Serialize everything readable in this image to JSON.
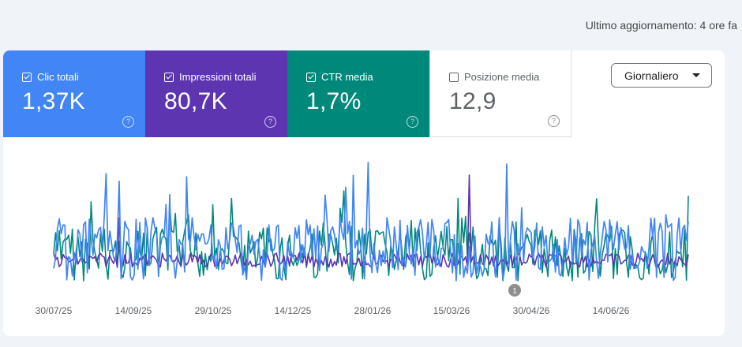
{
  "header": {
    "last_updated": "Ultimo aggiornamento: 4 ore fa"
  },
  "metrics": [
    {
      "label": "Clic totali",
      "value": "1,37K",
      "checked": true,
      "color": "#4285f4"
    },
    {
      "label": "Impressioni totali",
      "value": "80,7K",
      "checked": true,
      "color": "#5e35b1"
    },
    {
      "label": "CTR media",
      "value": "1,7%",
      "checked": true,
      "color": "#00897b"
    },
    {
      "label": "Posizione media",
      "value": "12,9",
      "checked": false,
      "color": "#ffffff"
    }
  ],
  "help_glyph": "?",
  "granularity": {
    "selected": "Giornaliero"
  },
  "annotation": {
    "label": "1"
  },
  "chart_data": {
    "type": "line",
    "x_ticks": [
      "30/07/25",
      "14/09/25",
      "29/10/25",
      "14/12/25",
      "28/01/26",
      "15/03/26",
      "30/04/26",
      "14/06/26"
    ],
    "grid": false,
    "series": [
      {
        "name": "Clic totali",
        "color": "#4285f4"
      },
      {
        "name": "Impressioni totali",
        "color": "#5e35b1"
      },
      {
        "name": "CTR media",
        "color": "#00897b"
      }
    ]
  }
}
